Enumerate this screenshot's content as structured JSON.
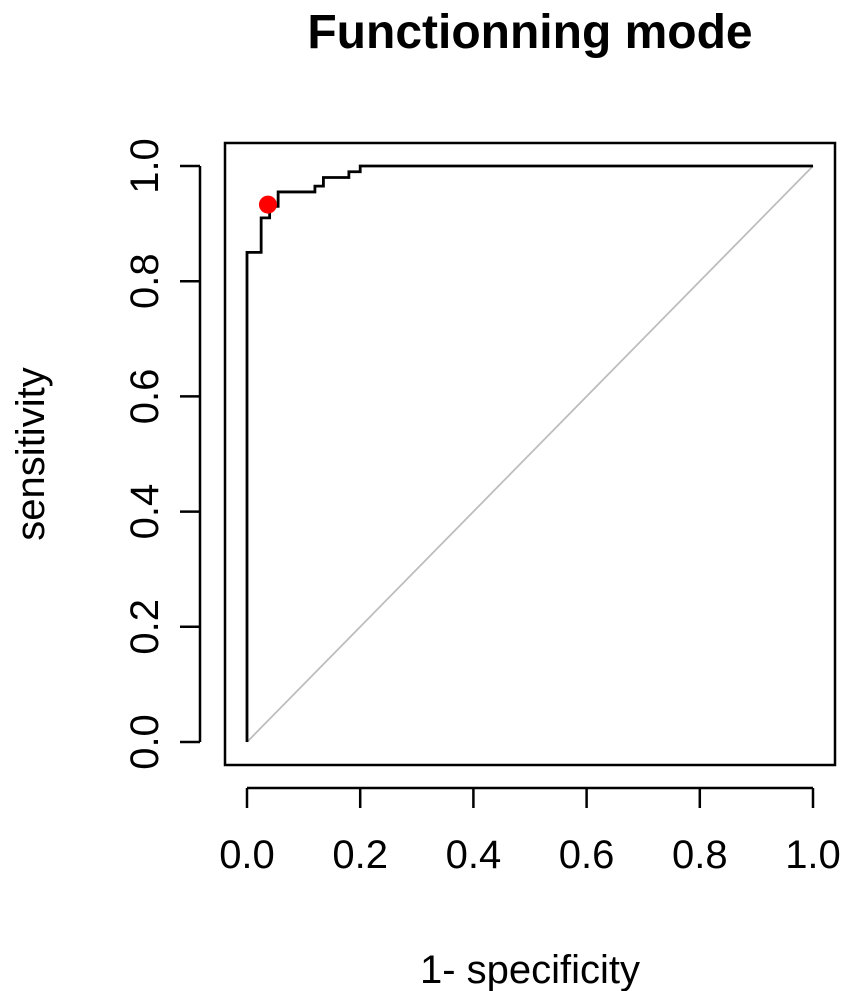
{
  "chart_data": {
    "type": "line",
    "title": "Functionning mode",
    "xlabel": "1- specificity",
    "ylabel": "sensitivity",
    "xlim": [
      0,
      1
    ],
    "ylim": [
      0,
      1
    ],
    "x_ticks": [
      "0.0",
      "0.2",
      "0.4",
      "0.6",
      "0.8",
      "1.0"
    ],
    "y_ticks": [
      "0.0",
      "0.2",
      "0.4",
      "0.6",
      "0.8",
      "1.0"
    ],
    "grid": false,
    "legend": "none",
    "series": [
      {
        "kind": "roc-step",
        "color": "#000000",
        "points": [
          [
            0.0,
            0.0
          ],
          [
            0.0,
            0.85
          ],
          [
            0.025,
            0.85
          ],
          [
            0.025,
            0.91
          ],
          [
            0.04,
            0.91
          ],
          [
            0.04,
            0.93
          ],
          [
            0.055,
            0.93
          ],
          [
            0.055,
            0.955
          ],
          [
            0.12,
            0.955
          ],
          [
            0.12,
            0.965
          ],
          [
            0.135,
            0.965
          ],
          [
            0.135,
            0.98
          ],
          [
            0.18,
            0.98
          ],
          [
            0.18,
            0.99
          ],
          [
            0.2,
            0.99
          ],
          [
            0.2,
            1.0
          ],
          [
            1.0,
            1.0
          ]
        ]
      },
      {
        "kind": "diagonal-reference",
        "color": "#bdbdbd",
        "points": [
          [
            0.0,
            0.0
          ],
          [
            1.0,
            1.0
          ]
        ]
      }
    ],
    "highlight_point": {
      "x": 0.037,
      "y": 0.933,
      "color": "#ff0000"
    }
  }
}
